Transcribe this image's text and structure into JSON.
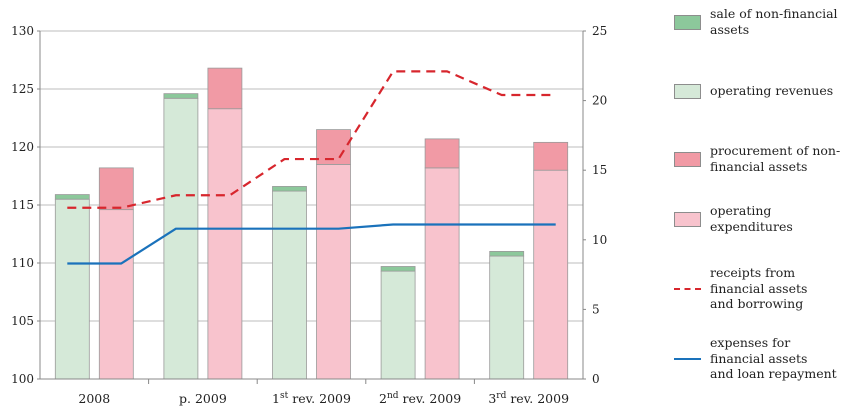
{
  "chart_data": {
    "type": "bar",
    "categories": [
      "2008",
      "p. 2009",
      "1st rev. 2009",
      "2nd rev. 2009",
      "3rd rev. 2009"
    ],
    "category_labels": [
      {
        "base": "2008",
        "sup": "",
        "rest": ""
      },
      {
        "base": "p. 2009",
        "sup": "",
        "rest": ""
      },
      {
        "base": "1",
        "sup": "st",
        "rest": " rev. 2009"
      },
      {
        "base": "2",
        "sup": "nd",
        "rest": " rev. 2009"
      },
      {
        "base": "3",
        "sup": "rd",
        "rest": " rev. 2009"
      }
    ],
    "left_axis": {
      "min": 100,
      "max": 130,
      "ticks": [
        100,
        105,
        110,
        115,
        120,
        125,
        130
      ]
    },
    "right_axis": {
      "min": 0,
      "max": 25,
      "ticks": [
        0,
        5,
        10,
        15,
        20,
        25
      ]
    },
    "series": [
      {
        "name": "operating revenues",
        "type": "stacked-bar",
        "group": "revenues",
        "axis": "left",
        "values": [
          115.5,
          124.2,
          116.2,
          109.3,
          110.6
        ]
      },
      {
        "name": "sale of non-financial assets",
        "type": "stacked-bar",
        "group": "revenues",
        "axis": "left",
        "values": [
          0.4,
          0.4,
          0.4,
          0.4,
          0.4
        ]
      },
      {
        "name": "operating expenditures",
        "type": "stacked-bar",
        "group": "expenditures",
        "axis": "left",
        "values": [
          114.6,
          123.3,
          118.5,
          118.2,
          118.0
        ]
      },
      {
        "name": "procurement of non-financial assets",
        "type": "stacked-bar",
        "group": "expenditures",
        "axis": "left",
        "values": [
          3.6,
          3.5,
          3.0,
          2.5,
          2.4
        ]
      },
      {
        "name": "receipts from financial assets and borrowing",
        "type": "line",
        "style": "dashed",
        "axis": "right",
        "values": [
          12.3,
          13.2,
          15.8,
          22.1,
          20.4
        ]
      },
      {
        "name": "expenses for financial assets and loan repayment",
        "type": "line",
        "style": "solid",
        "axis": "right",
        "values": [
          8.3,
          10.8,
          10.8,
          11.1,
          11.1
        ]
      }
    ],
    "colors": {
      "operating revenues": "#d5e9d8",
      "sale of non-financial assets": "#8cc89b",
      "operating expenditures": "#f8c3cd",
      "procurement of non-financial assets": "#f19aa5",
      "receipts from financial assets and borrowing": "#d7262d",
      "expenses for financial assets and loan repayment": "#1a72bb",
      "bar_outline": "#9a9a9a",
      "gridline": "#bdbdbd"
    },
    "grid": true,
    "legend_position": "right"
  },
  "legend": [
    {
      "key": "sale of non-financial assets",
      "symbol": "box",
      "lines": [
        "sale of non-financial",
        "assets"
      ]
    },
    {
      "key": "operating revenues",
      "symbol": "box",
      "lines": [
        "operating revenues"
      ]
    },
    {
      "key": "procurement of non-financial assets",
      "symbol": "box",
      "lines": [
        "procurement of non-",
        "financial assets"
      ]
    },
    {
      "key": "operating expenditures",
      "symbol": "box",
      "lines": [
        "operating",
        "expenditures"
      ]
    },
    {
      "key": "receipts from financial assets and borrowing",
      "symbol": "dash",
      "lines": [
        "receipts from",
        "financial assets",
        "and borrowing"
      ]
    },
    {
      "key": "expenses for financial assets and loan repayment",
      "symbol": "line",
      "lines": [
        "expenses for",
        "financial assets",
        "and loan repayment"
      ]
    }
  ]
}
